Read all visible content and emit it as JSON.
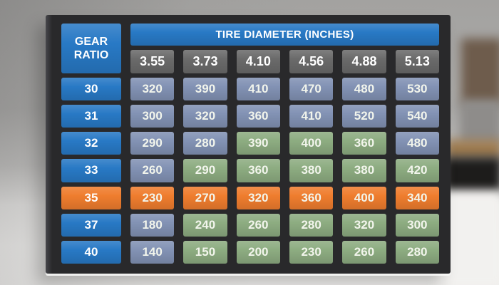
{
  "colors": {
    "blue": "#2879c5",
    "header_gray": "#6a6a6a",
    "blue_gray": "#8292b4",
    "green": "#8dac81",
    "orange": "#ef7d2e",
    "board_black": "#29292b",
    "value_text": "#f2f5ec",
    "header_text": "#ffffff"
  },
  "chart_data": {
    "type": "table",
    "title": "TIRE DIAMETER (INCHES)",
    "corner_header": "GEAR RATIO",
    "columns": [
      "3.55",
      "3.73",
      "4.10",
      "4.56",
      "4.88",
      "5.13"
    ],
    "rows": [
      {
        "gear": "30",
        "gear_color": "blue",
        "values": [
          "320",
          "390",
          "410",
          "470",
          "480",
          "530"
        ],
        "cell_colors": [
          "blue_gray",
          "blue_gray",
          "blue_gray",
          "blue_gray",
          "blue_gray",
          "blue_gray"
        ]
      },
      {
        "gear": "31",
        "gear_color": "blue",
        "values": [
          "300",
          "320",
          "360",
          "410",
          "520",
          "540"
        ],
        "cell_colors": [
          "blue_gray",
          "blue_gray",
          "blue_gray",
          "blue_gray",
          "blue_gray",
          "blue_gray"
        ]
      },
      {
        "gear": "32",
        "gear_color": "blue",
        "values": [
          "290",
          "280",
          "390",
          "400",
          "360",
          "480"
        ],
        "cell_colors": [
          "blue_gray",
          "blue_gray",
          "green",
          "green",
          "green",
          "blue_gray"
        ]
      },
      {
        "gear": "33",
        "gear_color": "blue",
        "values": [
          "260",
          "290",
          "360",
          "380",
          "380",
          "420"
        ],
        "cell_colors": [
          "blue_gray",
          "green",
          "green",
          "green",
          "green",
          "green"
        ]
      },
      {
        "gear": "35",
        "gear_color": "orange",
        "values": [
          "230",
          "270",
          "320",
          "360",
          "400",
          "340"
        ],
        "cell_colors": [
          "orange",
          "orange",
          "orange",
          "orange",
          "orange",
          "orange"
        ]
      },
      {
        "gear": "37",
        "gear_color": "blue",
        "values": [
          "180",
          "240",
          "260",
          "280",
          "320",
          "300"
        ],
        "cell_colors": [
          "blue_gray",
          "green",
          "green",
          "green",
          "green",
          "green"
        ]
      },
      {
        "gear": "40",
        "gear_color": "blue",
        "values": [
          "140",
          "150",
          "200",
          "230",
          "260",
          "280"
        ],
        "cell_colors": [
          "blue_gray",
          "green",
          "green",
          "green",
          "green",
          "green"
        ]
      }
    ]
  }
}
